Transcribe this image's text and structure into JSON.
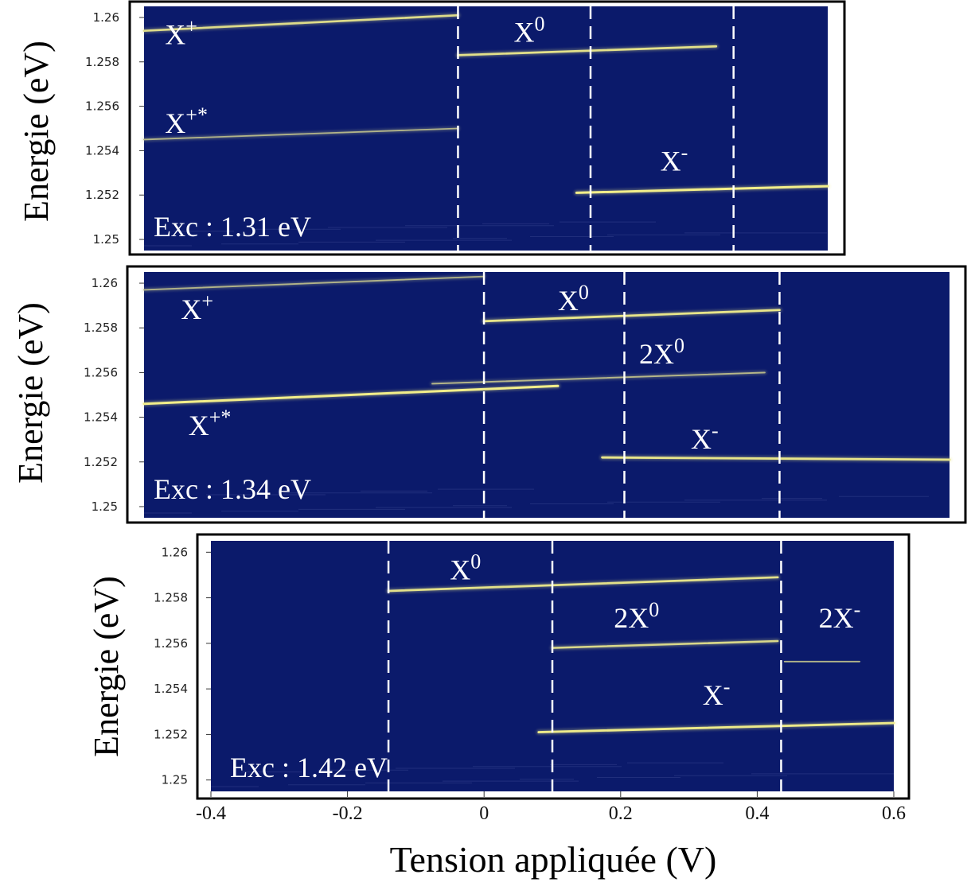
{
  "colors": {
    "background": "#0b1a6b",
    "line_bright": "#f2ee8a",
    "line_dim": "#8f9488",
    "divider": "#ffffff",
    "frame": "#000000"
  },
  "chart_data": [
    {
      "type": "heatmap",
      "title": "",
      "annotation": "Exc : 1.31 eV",
      "ylabel": "Energie (eV)",
      "xlabel": "",
      "xlim": [
        -0.48,
        0.5
      ],
      "ylim": [
        1.2495,
        1.2605
      ],
      "yticks": [
        "1.26",
        "1.258",
        "1.256",
        "1.254",
        "1.252",
        "1.25"
      ],
      "ytick_values": [
        1.26,
        1.258,
        1.256,
        1.254,
        1.252,
        1.25
      ],
      "dividers": [
        -0.03,
        0.16,
        0.365
      ],
      "labels": [
        {
          "name": "X+",
          "base": "X",
          "sup": "+",
          "x": -0.45,
          "y": 1.2588
        },
        {
          "name": "X0",
          "base": "X",
          "sup": "0",
          "x": 0.05,
          "y": 1.2589
        },
        {
          "name": "X+*",
          "base": "X",
          "sup": "+*",
          "x": -0.45,
          "y": 1.2548
        },
        {
          "name": "X-",
          "base": "X",
          "sup": "-",
          "x": 0.26,
          "y": 1.2531
        }
      ],
      "lines": [
        {
          "name": "X+",
          "x": [
            -0.48,
            -0.03
          ],
          "y": [
            1.2594,
            1.2601
          ],
          "intensity": 0.8
        },
        {
          "name": "X0",
          "x": [
            -0.03,
            0.34
          ],
          "y": [
            1.2583,
            1.2587
          ],
          "intensity": 0.85
        },
        {
          "name": "X+*",
          "x": [
            -0.48,
            -0.03
          ],
          "y": [
            1.2545,
            1.255
          ],
          "intensity": 0.35
        },
        {
          "name": "X-",
          "x": [
            0.14,
            0.5
          ],
          "y": [
            1.2521,
            1.2524
          ],
          "intensity": 1.0
        }
      ]
    },
    {
      "type": "heatmap",
      "title": "",
      "annotation": "Exc : 1.34 eV",
      "ylabel": "Energie (eV)",
      "xlabel": "",
      "xlim": [
        -0.49,
        0.6
      ],
      "ylim": [
        1.2495,
        1.2605
      ],
      "yticks": [
        "1.26",
        "1.258",
        "1.256",
        "1.254",
        "1.252",
        "1.25"
      ],
      "ytick_values": [
        1.26,
        1.258,
        1.256,
        1.254,
        1.252,
        1.25
      ],
      "dividers": [
        -0.03,
        0.16,
        0.37
      ],
      "labels": [
        {
          "name": "X+",
          "base": "X",
          "sup": "+",
          "x": -0.44,
          "y": 1.2584
        },
        {
          "name": "X0",
          "base": "X",
          "sup": "0",
          "x": 0.07,
          "y": 1.2588
        },
        {
          "name": "2X0",
          "base": "2X",
          "sup": "0",
          "x": 0.18,
          "y": 1.2564
        },
        {
          "name": "X+*",
          "base": "X",
          "sup": "+*",
          "x": -0.43,
          "y": 1.2532
        },
        {
          "name": "X-",
          "base": "X",
          "sup": "-",
          "x": 0.25,
          "y": 1.2526
        }
      ],
      "lines": [
        {
          "name": "X+",
          "x": [
            -0.49,
            -0.03
          ],
          "y": [
            1.2597,
            1.2603
          ],
          "intensity": 0.35
        },
        {
          "name": "X0",
          "x": [
            -0.03,
            0.37
          ],
          "y": [
            1.2583,
            1.2588
          ],
          "intensity": 0.9
        },
        {
          "name": "2X0",
          "x": [
            -0.1,
            0.35
          ],
          "y": [
            1.2555,
            1.256
          ],
          "intensity": 0.4
        },
        {
          "name": "X+*",
          "x": [
            -0.49,
            0.07
          ],
          "y": [
            1.2546,
            1.2554
          ],
          "intensity": 1.0
        },
        {
          "name": "X-",
          "x": [
            0.13,
            0.6
          ],
          "y": [
            1.2522,
            1.2521
          ],
          "intensity": 0.9
        }
      ]
    },
    {
      "type": "heatmap",
      "title": "",
      "annotation": "Exc : 1.42 eV",
      "ylabel": "Energie (eV)",
      "xlabel": "Tension appliquée (V)",
      "xlim": [
        -0.4,
        0.6
      ],
      "ylim": [
        1.2495,
        1.2605
      ],
      "xticks": [
        "-0.4",
        "-0.2",
        "0",
        "0.2",
        "0.4",
        "0.6"
      ],
      "xtick_values": [
        -0.4,
        -0.2,
        0,
        0.2,
        0.4,
        0.6
      ],
      "yticks": [
        "1.26",
        "1.258",
        "1.256",
        "1.254",
        "1.252",
        "1.25"
      ],
      "ytick_values": [
        1.26,
        1.258,
        1.256,
        1.254,
        1.252,
        1.25
      ],
      "dividers": [
        -0.14,
        0.1,
        0.435
      ],
      "labels": [
        {
          "name": "X0",
          "base": "X",
          "sup": "0",
          "x": -0.05,
          "y": 1.2588
        },
        {
          "name": "2X0",
          "base": "2X",
          "sup": "0",
          "x": 0.19,
          "y": 1.2567
        },
        {
          "name": "2X-",
          "base": "2X",
          "sup": "-",
          "x": 0.49,
          "y": 1.2567
        },
        {
          "name": "X-",
          "base": "X",
          "sup": "-",
          "x": 0.32,
          "y": 1.2533
        }
      ],
      "lines": [
        {
          "name": "X0",
          "x": [
            -0.14,
            0.43
          ],
          "y": [
            1.2583,
            1.2589
          ],
          "intensity": 0.85
        },
        {
          "name": "2X0",
          "x": [
            0.1,
            0.43
          ],
          "y": [
            1.2558,
            1.2561
          ],
          "intensity": 0.75
        },
        {
          "name": "2X-",
          "x": [
            0.44,
            0.55
          ],
          "y": [
            1.2552,
            1.2552
          ],
          "intensity": 0.35
        },
        {
          "name": "X-",
          "x": [
            0.08,
            0.6
          ],
          "y": [
            1.2521,
            1.2525
          ],
          "intensity": 0.95
        }
      ]
    }
  ]
}
